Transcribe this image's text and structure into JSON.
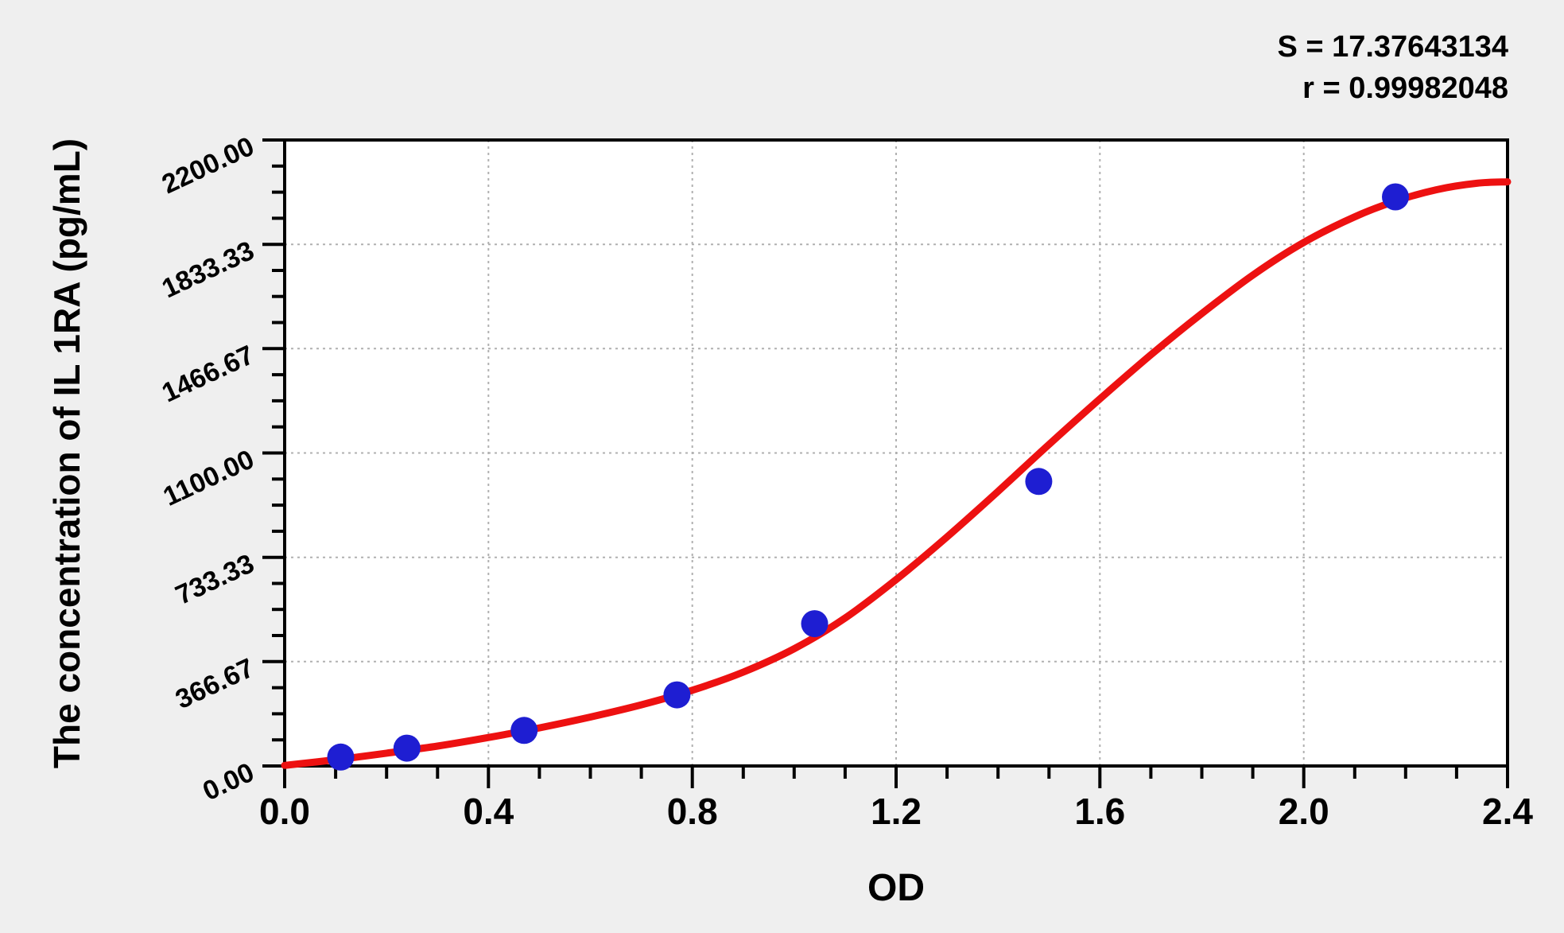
{
  "chart_data": {
    "type": "scatter",
    "title": "",
    "xlabel": "OD",
    "ylabel": "The concentration of IL 1RA (pg/mL)",
    "xlim": [
      0,
      2.4
    ],
    "ylim": [
      0,
      2200
    ],
    "x_tick_values": [
      0,
      0.4,
      0.8,
      1.2,
      1.6,
      2.0,
      2.4
    ],
    "x_tick_labels": [
      "0.0",
      "0.4",
      "0.8",
      "1.2",
      "1.6",
      "2.0",
      "2.4"
    ],
    "y_tick_values": [
      0,
      366.67,
      733.33,
      1100,
      1466.67,
      1833.33,
      2200
    ],
    "y_tick_labels": [
      "0.00",
      "366.67",
      "733.33",
      "1100.00",
      "1466.67",
      "1833.33",
      "2200.00"
    ],
    "x_minor_step": 0.1,
    "y_minor_step": 91.6667,
    "grid": "dashed-major-both-axes",
    "legend": "none",
    "annotations": {
      "s": "S = 17.37643134",
      "r": "r = 0.99982048"
    },
    "series": [
      {
        "name": "standard-points",
        "type": "scatter",
        "color": "#1e1ed2",
        "marker_radius_px": 17,
        "points": [
          {
            "od": 0.11,
            "concentration": 31.25
          },
          {
            "od": 0.24,
            "concentration": 62.5
          },
          {
            "od": 0.47,
            "concentration": 125
          },
          {
            "od": 0.77,
            "concentration": 250
          },
          {
            "od": 1.04,
            "concentration": 500
          },
          {
            "od": 1.48,
            "concentration": 1000
          },
          {
            "od": 2.18,
            "concentration": 2000
          }
        ]
      },
      {
        "name": "fitted-curve",
        "type": "line",
        "color": "#ed1111",
        "stroke_width_px": 9,
        "points": [
          [
            0.0,
            2
          ],
          [
            0.1,
            22
          ],
          [
            0.2,
            45
          ],
          [
            0.3,
            70
          ],
          [
            0.4,
            100
          ],
          [
            0.5,
            134
          ],
          [
            0.6,
            172
          ],
          [
            0.7,
            215
          ],
          [
            0.8,
            266
          ],
          [
            0.9,
            330
          ],
          [
            1.0,
            412
          ],
          [
            1.1,
            520
          ],
          [
            1.2,
            655
          ],
          [
            1.3,
            805
          ],
          [
            1.4,
            965
          ],
          [
            1.5,
            1130
          ],
          [
            1.6,
            1290
          ],
          [
            1.7,
            1445
          ],
          [
            1.8,
            1590
          ],
          [
            1.9,
            1725
          ],
          [
            2.0,
            1840
          ],
          [
            2.1,
            1930
          ],
          [
            2.18,
            1985
          ],
          [
            2.26,
            2025
          ],
          [
            2.34,
            2048
          ],
          [
            2.4,
            2053
          ]
        ]
      }
    ],
    "colors": {
      "page_bg": "#efefef",
      "plot_bg": "#ffffff",
      "frame": "#000000",
      "grid": "#b0b0b0",
      "text": "#000000"
    }
  }
}
